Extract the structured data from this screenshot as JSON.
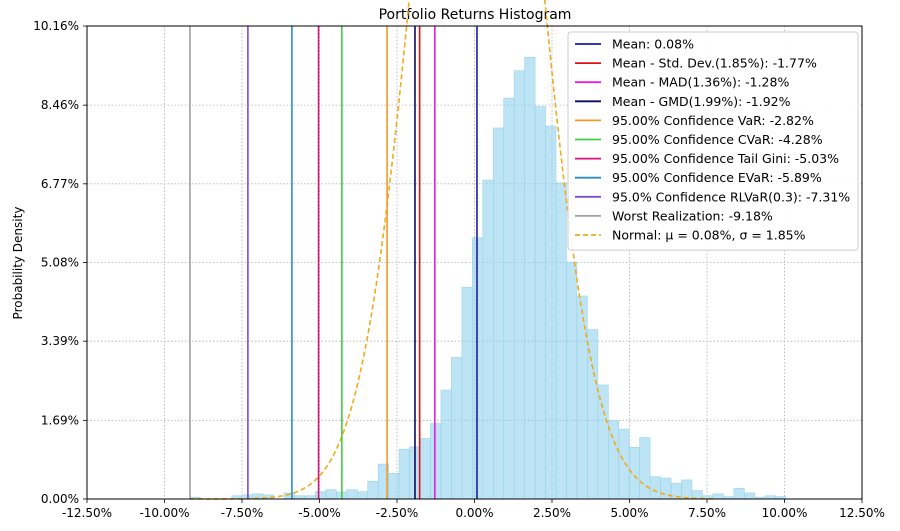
{
  "chart_data": {
    "type": "bar",
    "title": "Portfolio Returns Histogram",
    "xlabel": "",
    "ylabel": "Probability Density",
    "xlim": [
      -12.5,
      12.5
    ],
    "ylim": [
      0,
      10.16
    ],
    "x_ticks": [
      "-12.50%",
      "-10.00%",
      "-7.50%",
      "-5.00%",
      "-2.50%",
      "0.00%",
      "2.50%",
      "5.00%",
      "7.50%",
      "10.00%",
      "12.50%"
    ],
    "x_tick_values": [
      -12.5,
      -10,
      -7.5,
      -5,
      -2.5,
      0,
      2.5,
      5,
      7.5,
      10,
      12.5
    ],
    "y_ticks": [
      "0.00%",
      "1.69%",
      "3.39%",
      "5.08%",
      "6.77%",
      "8.46%",
      "10.16%"
    ],
    "y_tick_values": [
      0,
      1.69,
      3.39,
      5.08,
      6.77,
      8.46,
      10.16
    ],
    "grid": true,
    "legend_position": "top-right",
    "bar_color": "#87ceeb",
    "bins": {
      "start": -9.18,
      "width": 0.3374,
      "values": [
        0.04,
        0.0,
        0.0,
        0.0,
        0.07,
        0.09,
        0.11,
        0.09,
        0.0,
        0.13,
        0.07,
        0.07,
        0.16,
        0.2,
        0.15,
        0.2,
        0.16,
        0.38,
        0.75,
        0.55,
        1.07,
        1.12,
        1.3,
        1.62,
        2.34,
        3.04,
        4.55,
        5.61,
        6.85,
        7.97,
        8.61,
        9.2,
        9.49,
        8.43,
        8.01,
        6.79,
        5.09,
        4.36,
        3.64,
        2.45,
        1.68,
        1.5,
        1.11,
        1.32,
        0.48,
        0.45,
        0.34,
        0.41,
        0.18,
        0.07,
        0.11,
        0.05,
        0.23,
        0.13,
        0.04,
        0.07,
        0.05
      ]
    },
    "normal": {
      "mu": 0.08,
      "sigma": 1.85,
      "color": "#f2a91b"
    },
    "vlines": [
      {
        "x": 0.08,
        "color": "#1c1cab"
      },
      {
        "x": -1.77,
        "color": "#e01010"
      },
      {
        "x": -1.28,
        "color": "#e51ee5"
      },
      {
        "x": -1.92,
        "color": "#0a0a60"
      },
      {
        "x": -2.82,
        "color": "#f49a23"
      },
      {
        "x": -4.28,
        "color": "#44cc44"
      },
      {
        "x": -5.03,
        "color": "#d6107c"
      },
      {
        "x": -5.89,
        "color": "#2b8fc7"
      },
      {
        "x": -7.31,
        "color": "#7b4fcc"
      },
      {
        "x": -9.18,
        "color": "#a0a0a0"
      }
    ],
    "legend": [
      {
        "label": "Mean: 0.08%",
        "color": "#1c1cab",
        "style": "solid"
      },
      {
        "label": "Mean - Std. Dev.(1.85%): -1.77%",
        "color": "#e01010",
        "style": "solid"
      },
      {
        "label": "Mean - MAD(1.36%): -1.28%",
        "color": "#e51ee5",
        "style": "solid"
      },
      {
        "label": "Mean - GMD(1.99%): -1.92%",
        "color": "#0a0a60",
        "style": "solid"
      },
      {
        "label": "95.00% Confidence VaR: -2.82%",
        "color": "#f49a23",
        "style": "solid"
      },
      {
        "label": "95.00% Confidence CVaR: -4.28%",
        "color": "#44cc44",
        "style": "solid"
      },
      {
        "label": "95.00% Confidence Tail Gini: -5.03%",
        "color": "#d6107c",
        "style": "solid"
      },
      {
        "label": "95.00% Confidence EVaR: -5.89%",
        "color": "#2b8fc7",
        "style": "solid"
      },
      {
        "label": "95.0% Confidence RLVaR(0.3): -7.31%",
        "color": "#7b4fcc",
        "style": "solid"
      },
      {
        "label": "Worst Realization: -9.18%",
        "color": "#a0a0a0",
        "style": "solid"
      },
      {
        "label": "Normal: μ = 0.08%, σ = 1.85%",
        "color": "#f2a91b",
        "style": "dashed"
      }
    ]
  }
}
